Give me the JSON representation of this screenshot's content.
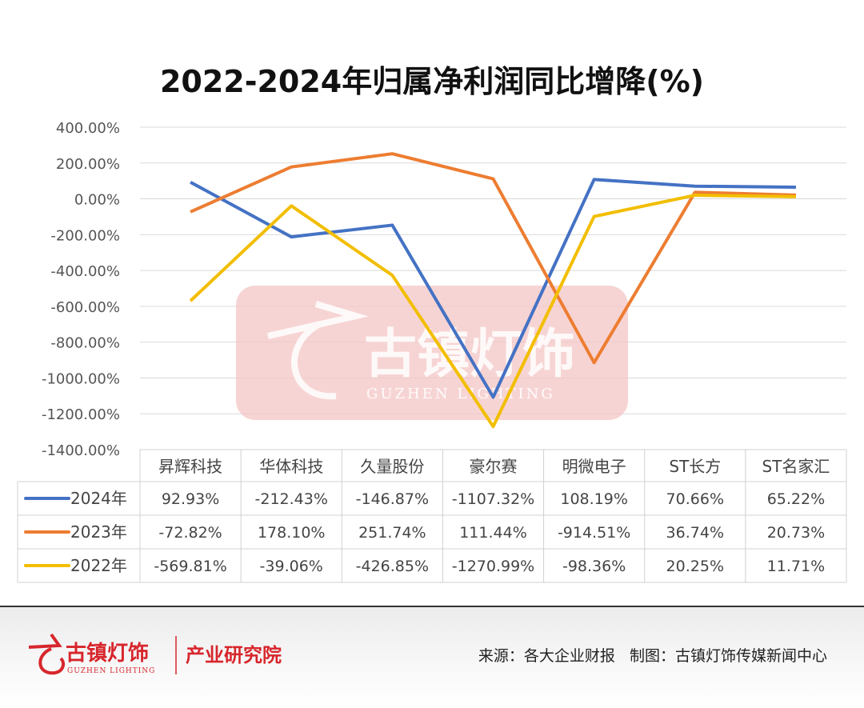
{
  "chart_data": {
    "type": "line",
    "title": "2022-2024年归属净利润同比增降(%)",
    "categories": [
      "昇辉科技",
      "华体科技",
      "久量股份",
      "豪尔赛",
      "明微电子",
      "ST长方",
      "ST名家汇"
    ],
    "series": [
      {
        "name": "2024年",
        "color": "#4472C4",
        "values": [
          92.93,
          -212.43,
          -146.87,
          -1107.32,
          108.19,
          70.66,
          65.22
        ],
        "labels": [
          "92.93%",
          "-212.43%",
          "-146.87%",
          "-1107.32%",
          "108.19%",
          "70.66%",
          "65.22%"
        ]
      },
      {
        "name": "2023年",
        "color": "#ED7D31",
        "values": [
          -72.82,
          178.1,
          251.74,
          111.44,
          -914.51,
          36.74,
          20.73
        ],
        "labels": [
          "-72.82%",
          "178.10%",
          "251.74%",
          "111.44%",
          "-914.51%",
          "36.74%",
          "20.73%"
        ]
      },
      {
        "name": "2022年",
        "color": "#F2BE00",
        "values": [
          -569.81,
          -39.06,
          -426.85,
          -1270.99,
          -98.36,
          20.25,
          11.71
        ],
        "labels": [
          "-569.81%",
          "-39.06%",
          "-426.85%",
          "-1270.99%",
          "-98.36%",
          "20.25%",
          "11.71%"
        ]
      }
    ],
    "ylim": [
      -1400,
      400
    ],
    "yticks": [
      "400.00%",
      "200.00%",
      "0.00%",
      "-200.00%",
      "-400.00%",
      "-600.00%",
      "-800.00%",
      "-1000.00%",
      "-1200.00%",
      "-1400.00%"
    ],
    "grid": true,
    "legend": "data-table"
  },
  "watermark": {
    "text_cn": "古镇灯饰",
    "text_en": "GUZHEN LIGHTING"
  },
  "footer": {
    "logo_cn": "古镇灯饰",
    "logo_en": "GUZHEN LIGHTING",
    "institute": "产业研究院",
    "source": "来源：各大企业财报   制图：古镇灯饰传媒新闻中心"
  }
}
